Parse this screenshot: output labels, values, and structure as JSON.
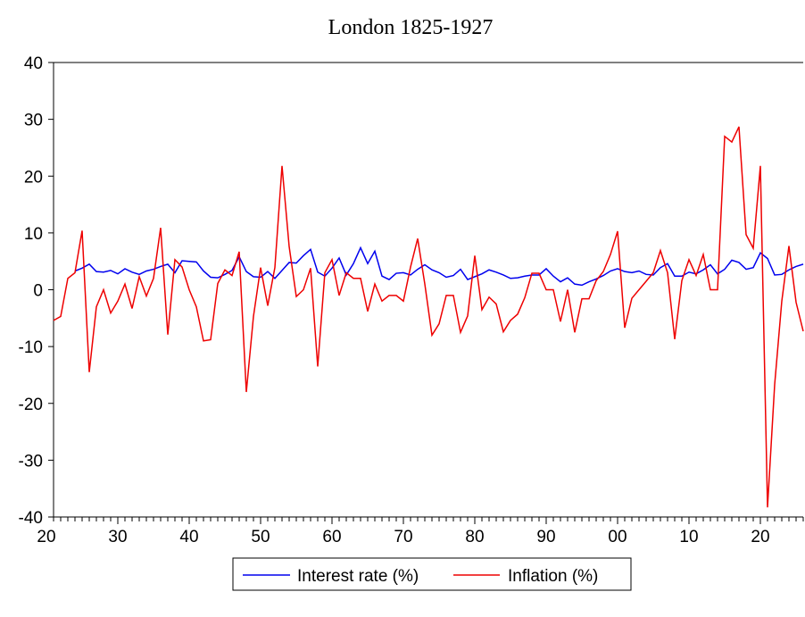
{
  "chart_data": {
    "type": "line",
    "title": "London 1825-1927",
    "xlabel": "",
    "ylabel": "",
    "x_range": [
      1821,
      1926
    ],
    "ylim": [
      -40,
      40
    ],
    "y_ticks": [
      40,
      30,
      20,
      10,
      0,
      -10,
      -20,
      -30,
      -40
    ],
    "x_ticks": [
      {
        "value": 1820,
        "label": "20"
      },
      {
        "value": 1830,
        "label": "30"
      },
      {
        "value": 1840,
        "label": "40"
      },
      {
        "value": 1850,
        "label": "50"
      },
      {
        "value": 1860,
        "label": "60"
      },
      {
        "value": 1870,
        "label": "70"
      },
      {
        "value": 1880,
        "label": "80"
      },
      {
        "value": 1890,
        "label": "90"
      },
      {
        "value": 1900,
        "label": "00"
      },
      {
        "value": 1910,
        "label": "10"
      },
      {
        "value": 1920,
        "label": "20"
      }
    ],
    "grid": false,
    "legend_position": "bottom-center",
    "series": [
      {
        "name": "Interest rate (%)",
        "color": "#0000ee",
        "x_start": 1824,
        "values": [
          3.3,
          3.8,
          4.5,
          3.2,
          3.1,
          3.4,
          2.8,
          3.7,
          3.1,
          2.7,
          3.3,
          3.6,
          4.1,
          4.5,
          3.0,
          5.1,
          5.0,
          4.9,
          3.3,
          2.2,
          2.1,
          2.7,
          3.4,
          5.8,
          3.2,
          2.3,
          2.2,
          3.2,
          2.0,
          3.4,
          4.8,
          4.7,
          6.0,
          7.1,
          3.1,
          2.4,
          3.8,
          5.6,
          2.6,
          4.6,
          7.4,
          4.6,
          6.8,
          2.4,
          1.8,
          2.9,
          3.0,
          2.6,
          3.6,
          4.4,
          3.5,
          3.0,
          2.2,
          2.5,
          3.6,
          1.8,
          2.3,
          2.8,
          3.5,
          3.1,
          2.6,
          2.0,
          2.1,
          2.4,
          2.6,
          2.6,
          3.7,
          2.4,
          1.4,
          2.1,
          1.0,
          0.8,
          1.4,
          1.9,
          2.5,
          3.3,
          3.7,
          3.2,
          3.0,
          3.3,
          2.7,
          2.6,
          3.9,
          4.6,
          2.4,
          2.4,
          3.1,
          2.8,
          3.5,
          4.4,
          2.8,
          3.6,
          5.2,
          4.8,
          3.6,
          3.9,
          6.5,
          5.5,
          2.6,
          2.7,
          3.5,
          4.1,
          4.5
        ]
      },
      {
        "name": "Inflation (%)",
        "color": "#ee0000",
        "x_start": 1821,
        "values": [
          -5.4,
          -4.7,
          2.0,
          3.0,
          10.4,
          -14.5,
          -3.0,
          0.0,
          -4.1,
          -2.0,
          1.0,
          -3.3,
          2.3,
          -1.1,
          2.0,
          10.9,
          -7.9,
          5.3,
          4.0,
          0.0,
          -3.0,
          -9.0,
          -8.8,
          1.1,
          3.5,
          2.5,
          6.7,
          -18.0,
          -4.7,
          3.9,
          -2.8,
          3.9,
          21.8,
          7.6,
          -1.2,
          0.0,
          3.8,
          -13.5,
          3.0,
          5.3,
          -1.0,
          3.0,
          2.0,
          2.0,
          -3.8,
          1.0,
          -2.0,
          -1.0,
          -1.0,
          -2.0,
          4.0,
          9.0,
          1.0,
          -8.0,
          -6.0,
          -1.0,
          -1.0,
          -7.5,
          -4.6,
          6.0,
          -3.5,
          -1.3,
          -2.5,
          -7.4,
          -5.4,
          -4.3,
          -1.4,
          2.9,
          2.9,
          0.0,
          0.0,
          -5.6,
          0.0,
          -7.5,
          -1.6,
          -1.6,
          1.6,
          3.2,
          6.2,
          10.3,
          -6.7,
          -1.5,
          0.0,
          1.5,
          3.0,
          6.9,
          3.0,
          -8.7,
          1.6,
          5.3,
          2.5,
          6.2,
          0.0,
          0.0,
          27.0,
          26.0,
          28.7,
          9.7,
          7.3,
          21.8,
          -38.3,
          -16.7,
          -2.0,
          7.7,
          -2.2,
          -7.3
        ]
      }
    ]
  }
}
